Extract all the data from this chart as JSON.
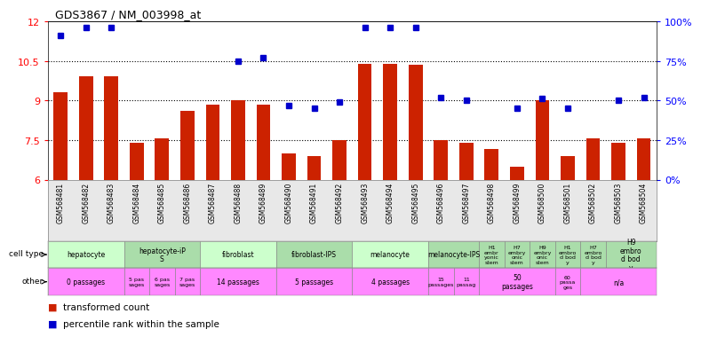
{
  "title": "GDS3867 / NM_003998_at",
  "samples": [
    "GSM568481",
    "GSM568482",
    "GSM568483",
    "GSM568484",
    "GSM568485",
    "GSM568486",
    "GSM568487",
    "GSM568488",
    "GSM568489",
    "GSM568490",
    "GSM568491",
    "GSM568492",
    "GSM568493",
    "GSM568494",
    "GSM568495",
    "GSM568496",
    "GSM568497",
    "GSM568498",
    "GSM568499",
    "GSM568500",
    "GSM568501",
    "GSM568502",
    "GSM568503",
    "GSM568504"
  ],
  "bar_values": [
    9.3,
    9.9,
    9.9,
    7.4,
    7.55,
    8.6,
    8.85,
    9.0,
    8.85,
    7.0,
    6.9,
    7.5,
    10.4,
    10.4,
    10.35,
    7.5,
    7.4,
    7.15,
    6.5,
    9.0,
    6.9,
    7.55,
    7.4,
    7.55
  ],
  "dot_values": [
    91,
    96,
    96,
    null,
    null,
    null,
    null,
    75,
    77,
    47,
    45,
    49,
    96,
    96,
    96,
    52,
    50,
    null,
    45,
    51,
    45,
    null,
    50,
    52
  ],
  "ylim_left": [
    6,
    12
  ],
  "ylim_right": [
    0,
    100
  ],
  "yticks_left": [
    6,
    7.5,
    9,
    10.5,
    12
  ],
  "yticks_right": [
    0,
    25,
    50,
    75,
    100
  ],
  "ytick_labels_left": [
    "6",
    "7.5",
    "9",
    "10.5",
    "12"
  ],
  "ytick_labels_right": [
    "0%",
    "25%",
    "50%",
    "75%",
    "100%"
  ],
  "bar_color": "#cc2200",
  "dot_color": "#0000cc",
  "hgrid_ticks": [
    7.5,
    9.0,
    10.5
  ],
  "cell_ranges": [
    [
      0,
      3,
      "hepatocyte",
      "#ccffcc"
    ],
    [
      3,
      6,
      "hepatocyte-iP\nS",
      "#aaddaa"
    ],
    [
      6,
      9,
      "fibroblast",
      "#ccffcc"
    ],
    [
      9,
      12,
      "fibroblast-IPS",
      "#aaddaa"
    ],
    [
      12,
      15,
      "melanocyte",
      "#ccffcc"
    ],
    [
      15,
      17,
      "melanocyte-IPS",
      "#aaddaa"
    ],
    [
      17,
      18,
      "H1\nembr\nyonic\nstem",
      "#aaddaa"
    ],
    [
      18,
      19,
      "H7\nembry\nonic\nstem",
      "#aaddaa"
    ],
    [
      19,
      20,
      "H9\nembry\nonic\nstem",
      "#aaddaa"
    ],
    [
      20,
      21,
      "H1\nembro\nd bod\ny",
      "#aaddaa"
    ],
    [
      21,
      22,
      "H7\nembro\nd bod\ny",
      "#aaddaa"
    ],
    [
      22,
      24,
      "H9\nembro\nd bod\ny",
      "#aaddaa"
    ]
  ],
  "other_ranges": [
    [
      0,
      3,
      "0 passages",
      "#ff88ff"
    ],
    [
      3,
      4,
      "5 pas\nsages",
      "#ff88ff"
    ],
    [
      4,
      5,
      "6 pas\nsages",
      "#ff88ff"
    ],
    [
      5,
      6,
      "7 pas\nsages",
      "#ff88ff"
    ],
    [
      6,
      9,
      "14 passages",
      "#ff88ff"
    ],
    [
      9,
      12,
      "5 passages",
      "#ff88ff"
    ],
    [
      12,
      15,
      "4 passages",
      "#ff88ff"
    ],
    [
      15,
      16,
      "15\npassages",
      "#ff88ff"
    ],
    [
      16,
      17,
      "11\npassag",
      "#ff88ff"
    ],
    [
      17,
      20,
      "50\npassages",
      "#ff88ff"
    ],
    [
      20,
      21,
      "60\npassa\nges",
      "#ff88ff"
    ],
    [
      21,
      24,
      "n/a",
      "#ff88ff"
    ]
  ],
  "legend": [
    {
      "color": "#cc2200",
      "label": "transformed count"
    },
    {
      "color": "#0000cc",
      "label": "percentile rank within the sample"
    }
  ],
  "sample_bg": "#e8e8e8",
  "cell_label_color": "#000000",
  "other_label_color": "#000000"
}
